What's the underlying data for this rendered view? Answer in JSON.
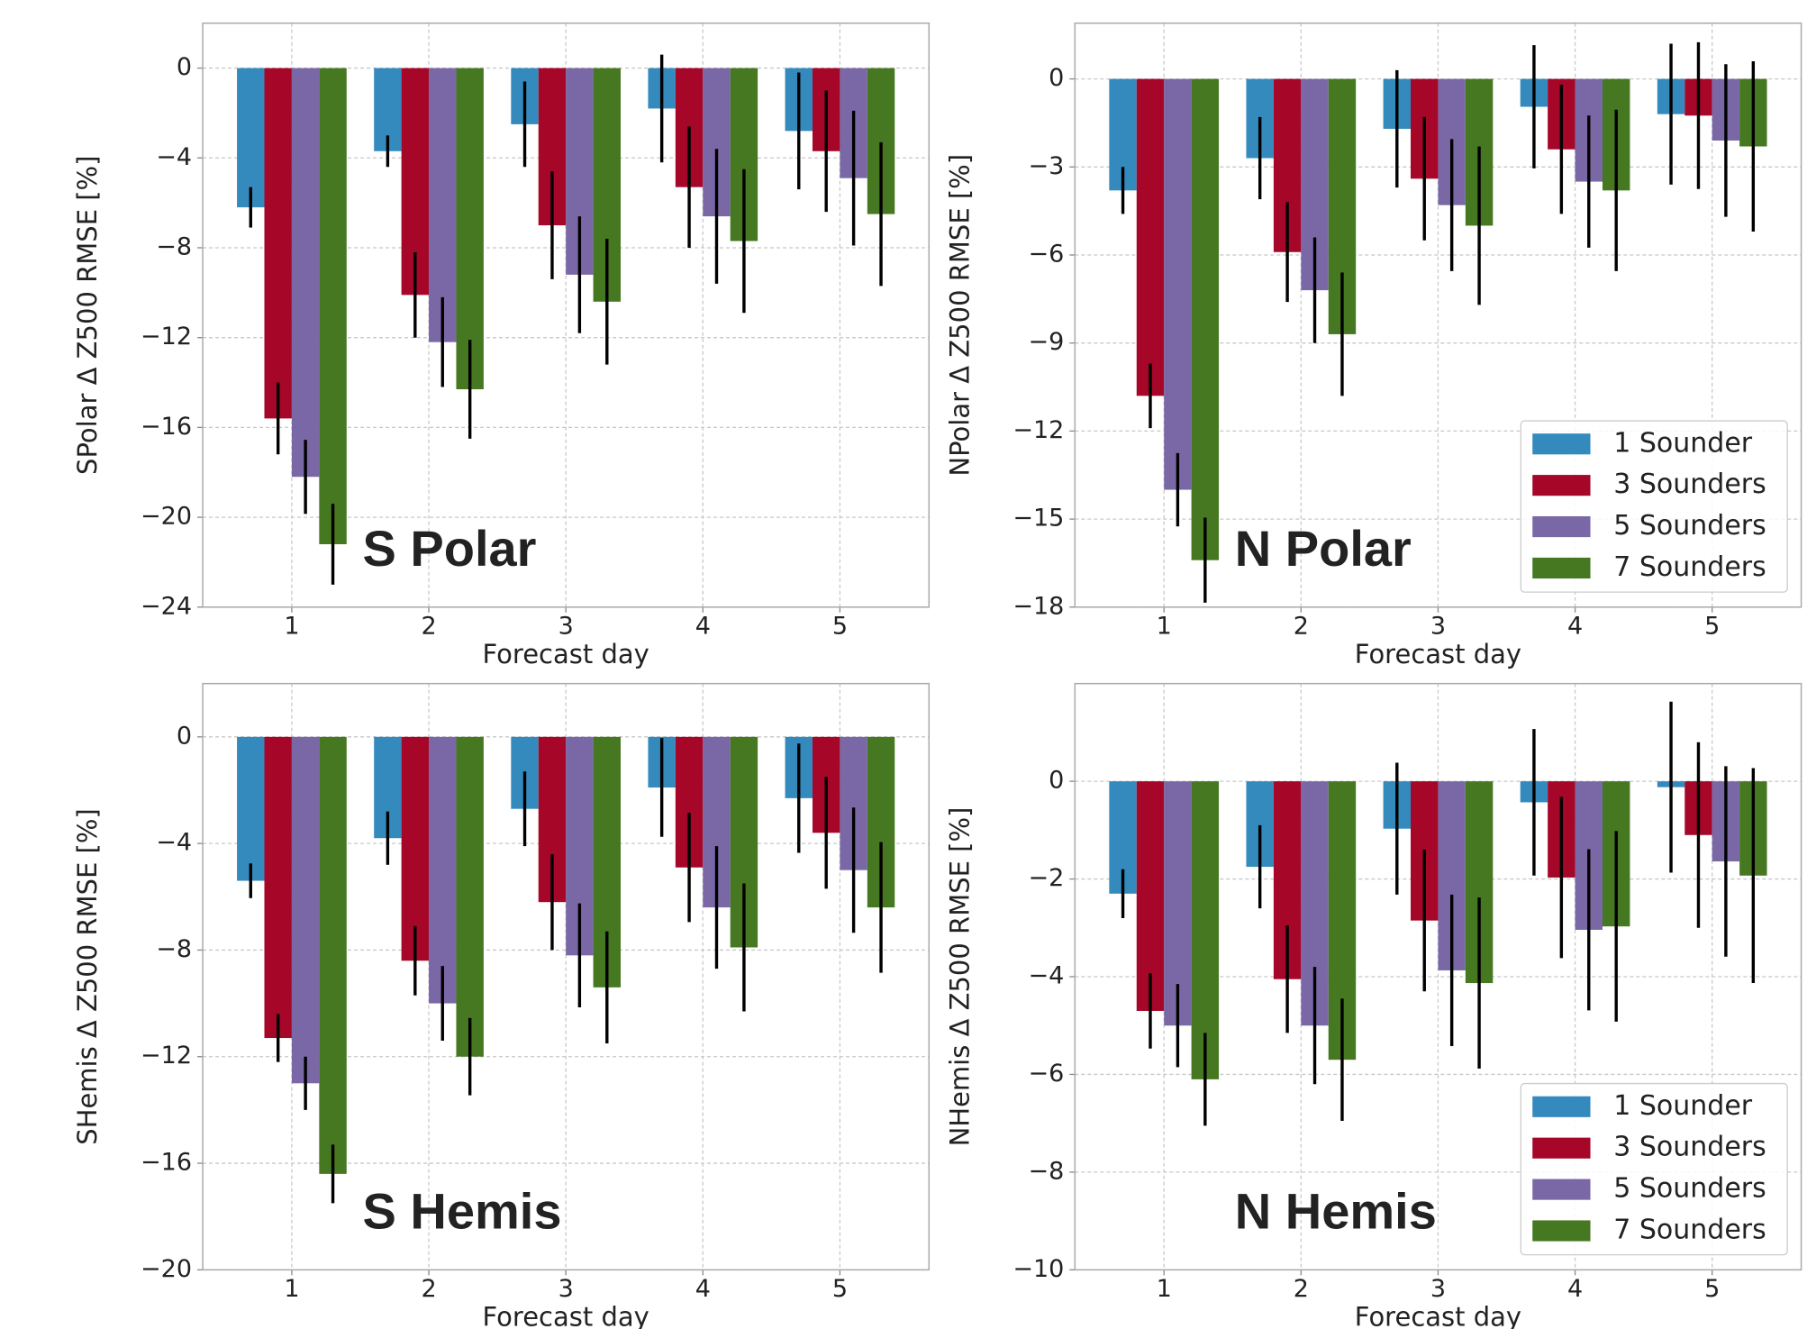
{
  "chart_data": [
    {
      "type": "bar",
      "annotation": "S Polar",
      "xlabel": "Forecast day",
      "ylabel": "SPolar Δ Z500 RMSE [%]",
      "x": [
        1,
        2,
        3,
        4,
        5
      ],
      "xlim": [
        0.35,
        5.65
      ],
      "xticks": [
        1,
        2,
        3,
        4,
        5
      ],
      "ylim": [
        -24,
        2
      ],
      "yticks": [
        {
          "value": -24,
          "label": "−24"
        },
        {
          "value": -20,
          "label": "−20"
        },
        {
          "value": -16,
          "label": "−16"
        },
        {
          "value": -12,
          "label": "−12"
        },
        {
          "value": -8,
          "label": "−8"
        },
        {
          "value": -4,
          "label": "−4"
        },
        0
      ],
      "grid": true,
      "series": [
        {
          "name": "1 Sounder",
          "color": "#348abd",
          "values": [
            -6.2,
            -3.7,
            -2.5,
            -1.8,
            -2.8
          ],
          "errors": [
            0.9,
            0.7,
            1.9,
            2.4,
            2.6
          ]
        },
        {
          "name": "3 Sounders",
          "color": "#a60628",
          "values": [
            -15.6,
            -10.1,
            -7.0,
            -5.3,
            -3.7
          ],
          "errors": [
            1.6,
            1.9,
            2.4,
            2.7,
            2.7
          ]
        },
        {
          "name": "5 Sounders",
          "color": "#7a68a6",
          "values": [
            -18.2,
            -12.2,
            -9.2,
            -6.6,
            -4.9
          ],
          "errors": [
            1.65,
            2.0,
            2.6,
            3.0,
            3.0
          ]
        },
        {
          "name": "7 Sounders",
          "color": "#467821",
          "values": [
            -21.2,
            -14.3,
            -10.4,
            -7.7,
            -6.5
          ],
          "errors": [
            1.8,
            2.2,
            2.8,
            3.2,
            3.2
          ]
        }
      ]
    },
    {
      "type": "bar",
      "annotation": "N Polar",
      "xlabel": "Forecast day",
      "ylabel": "NPolar Δ Z500 RMSE [%]",
      "x": [
        1,
        2,
        3,
        4,
        5
      ],
      "xlim": [
        0.35,
        5.65
      ],
      "xticks": [
        1,
        2,
        3,
        4,
        5
      ],
      "ylim": [
        -18,
        1.9
      ],
      "yticks": [
        {
          "value": -18,
          "label": "−18"
        },
        {
          "value": -15,
          "label": "−15"
        },
        {
          "value": -12,
          "label": "−12"
        },
        {
          "value": -9,
          "label": "−9"
        },
        {
          "value": -6,
          "label": "−6"
        },
        {
          "value": -3,
          "label": "−3"
        },
        0
      ],
      "grid": true,
      "legend": "lower right",
      "series": [
        {
          "name": "1 Sounder",
          "color": "#348abd",
          "values": [
            -3.8,
            -2.7,
            -1.7,
            -0.95,
            -1.2
          ],
          "errors": [
            0.8,
            1.4,
            2.0,
            2.1,
            2.4
          ]
        },
        {
          "name": "3 Sounders",
          "color": "#a60628",
          "values": [
            -10.8,
            -5.9,
            -3.4,
            -2.4,
            -1.25
          ],
          "errors": [
            1.1,
            1.7,
            2.1,
            2.2,
            2.5
          ]
        },
        {
          "name": "5 Sounders",
          "color": "#7a68a6",
          "values": [
            -14.0,
            -7.2,
            -4.3,
            -3.5,
            -2.1
          ],
          "errors": [
            1.25,
            1.8,
            2.25,
            2.25,
            2.6
          ]
        },
        {
          "name": "7 Sounders",
          "color": "#467821",
          "values": [
            -16.4,
            -8.7,
            -5.0,
            -3.8,
            -2.3
          ],
          "errors": [
            1.45,
            2.1,
            2.7,
            2.75,
            2.9
          ]
        }
      ]
    },
    {
      "type": "bar",
      "annotation": "S Hemis",
      "xlabel": "Forecast day",
      "ylabel": "SHemis Δ Z500 RMSE [%]",
      "x": [
        1,
        2,
        3,
        4,
        5
      ],
      "xlim": [
        0.35,
        5.65
      ],
      "xticks": [
        1,
        2,
        3,
        4,
        5
      ],
      "ylim": [
        -20,
        2
      ],
      "yticks": [
        {
          "value": -20,
          "label": "−20"
        },
        {
          "value": -16,
          "label": "−16"
        },
        {
          "value": -12,
          "label": "−12"
        },
        {
          "value": -8,
          "label": "−8"
        },
        {
          "value": -4,
          "label": "−4"
        },
        0
      ],
      "grid": true,
      "series": [
        {
          "name": "1 Sounder",
          "color": "#348abd",
          "values": [
            -5.4,
            -3.8,
            -2.7,
            -1.9,
            -2.3
          ],
          "errors": [
            0.65,
            1.0,
            1.4,
            1.85,
            2.05
          ]
        },
        {
          "name": "3 Sounders",
          "color": "#a60628",
          "values": [
            -11.3,
            -8.4,
            -6.2,
            -4.9,
            -3.6
          ],
          "errors": [
            0.9,
            1.3,
            1.8,
            2.05,
            2.1
          ]
        },
        {
          "name": "5 Sounders",
          "color": "#7a68a6",
          "values": [
            -13.0,
            -10.0,
            -8.2,
            -6.4,
            -5.0
          ],
          "errors": [
            1.0,
            1.4,
            1.95,
            2.3,
            2.35
          ]
        },
        {
          "name": "7 Sounders",
          "color": "#467821",
          "values": [
            -16.4,
            -12.0,
            -9.4,
            -7.9,
            -6.4
          ],
          "errors": [
            1.1,
            1.45,
            2.1,
            2.4,
            2.45
          ]
        }
      ]
    },
    {
      "type": "bar",
      "annotation": "N Hemis",
      "xlabel": "Forecast day",
      "ylabel": "NHemis Δ Z500 RMSE [%]",
      "x": [
        1,
        2,
        3,
        4,
        5
      ],
      "xlim": [
        0.35,
        5.65
      ],
      "xticks": [
        1,
        2,
        3,
        4,
        5
      ],
      "ylim": [
        -10,
        2
      ],
      "yticks": [
        {
          "value": -10,
          "label": "−10"
        },
        {
          "value": -8,
          "label": "−8"
        },
        {
          "value": -6,
          "label": "−6"
        },
        {
          "value": -4,
          "label": "−4"
        },
        {
          "value": -2,
          "label": "−2"
        },
        0
      ],
      "grid": true,
      "legend": "lower right",
      "series": [
        {
          "name": "1 Sounder",
          "color": "#348abd",
          "values": [
            -2.3,
            -1.75,
            -0.97,
            -0.43,
            -0.12
          ],
          "errors": [
            0.5,
            0.85,
            1.35,
            1.5,
            1.75
          ]
        },
        {
          "name": "3 Sounders",
          "color": "#a60628",
          "values": [
            -4.7,
            -4.05,
            -2.85,
            -1.97,
            -1.1
          ],
          "errors": [
            0.77,
            1.1,
            1.45,
            1.65,
            1.9
          ]
        },
        {
          "name": "5 Sounders",
          "color": "#7a68a6",
          "values": [
            -5.0,
            -5.0,
            -3.87,
            -3.04,
            -1.64
          ],
          "errors": [
            0.85,
            1.2,
            1.55,
            1.65,
            1.95
          ]
        },
        {
          "name": "7 Sounders",
          "color": "#467821",
          "values": [
            -6.1,
            -5.7,
            -4.13,
            -2.97,
            -1.93
          ],
          "errors": [
            0.95,
            1.25,
            1.75,
            1.95,
            2.2
          ]
        }
      ]
    }
  ]
}
